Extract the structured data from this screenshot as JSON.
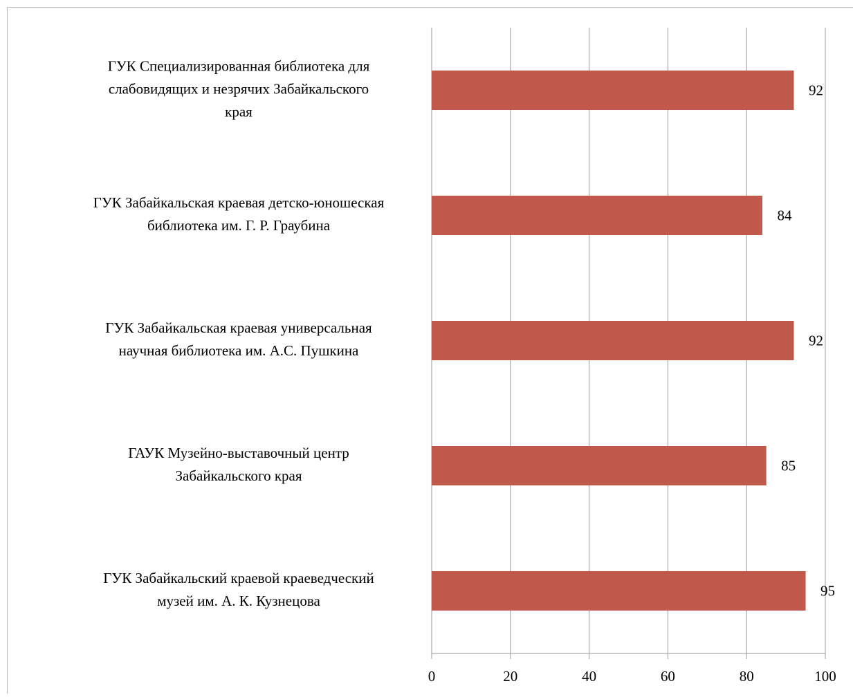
{
  "chart_data": {
    "type": "barh",
    "categories": [
      [
        "ГУК Специализированная библиотека для",
        "слабовидящих и незрячих Забайкальского",
        "края"
      ],
      [
        "ГУК Забайкальская краевая детско-юношеская",
        "библиотека им. Г. Р. Граубина"
      ],
      [
        "ГУК Забайкальская краевая универсальная",
        "научная библиотека им. А.С. Пушкина"
      ],
      [
        "ГАУК  Музейно-выставочный центр",
        "Забайкальского края"
      ],
      [
        "ГУК Забайкальский краевой краеведческий",
        "музей им. А. К. Кузнецова"
      ]
    ],
    "values": [
      92,
      84,
      92,
      85,
      95
    ],
    "color": "#c0584b",
    "xlim": [
      0,
      100
    ],
    "xticks": [
      0,
      20,
      40,
      60,
      80,
      100
    ],
    "grid": true
  }
}
